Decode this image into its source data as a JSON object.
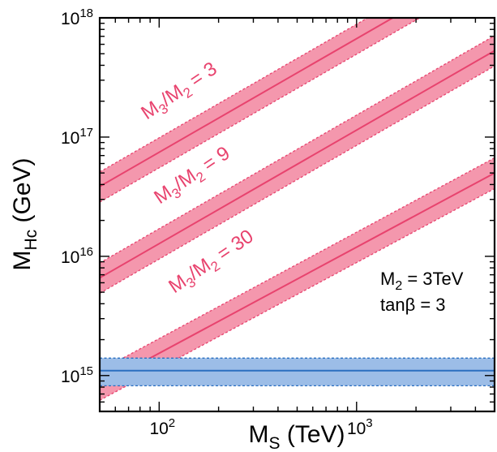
{
  "chart_data": {
    "type": "line",
    "xlabel": {
      "main": "M",
      "sub": "S",
      "unit": " (TeV)"
    },
    "ylabel": {
      "main": "M",
      "sub": "Hc",
      "unit": " (GeV)"
    },
    "xscale": "log",
    "yscale": "log",
    "xlim": [
      50,
      5000
    ],
    "ylim": [
      500000000000000.0,
      1e+18
    ],
    "grid": false,
    "x_ticks": [
      {
        "value": 100,
        "base": "10",
        "exp": "2"
      },
      {
        "value": 1000,
        "base": "10",
        "exp": "3"
      }
    ],
    "y_ticks": [
      {
        "value": 1000000000000000.0,
        "base": "10",
        "exp": "15"
      },
      {
        "value": 1e+16,
        "base": "10",
        "exp": "16"
      },
      {
        "value": 1e+17,
        "base": "10",
        "exp": "17"
      },
      {
        "value": 1e+18,
        "base": "10",
        "exp": "18"
      }
    ],
    "series": [
      {
        "label": {
          "a": "M",
          "a_sub": "3",
          "sep": "/M",
          "b_sub": "2",
          "rest": " = 3"
        },
        "x": [
          50,
          5000
        ],
        "y": [
          3.85e+16,
          3.1e+18
        ],
        "y_low": [
          2.85e+16,
          2.3e+18
        ],
        "y_high": [
          5.1e+16,
          4.1e+18
        ],
        "color": "#e8436e",
        "fill": "#f497ad"
      },
      {
        "label": {
          "a": "M",
          "a_sub": "3",
          "sep": "/M",
          "b_sub": "2",
          "rest": " = 9"
        },
        "x": [
          50,
          5000
        ],
        "y": [
          6600000000000000.0,
          5.3e+17
        ],
        "y_low": [
          4900000000000000.0,
          3.95e+17
        ],
        "y_high": [
          8800000000000000.0,
          7.1e+17
        ],
        "color": "#e8436e",
        "fill": "#f497ad"
      },
      {
        "label": {
          "a": "M",
          "a_sub": "3",
          "sep": "/M",
          "b_sub": "2",
          "rest": " = 30"
        },
        "x": [
          50,
          5000
        ],
        "y": [
          830000000000000.0,
          5e+16
        ],
        "y_low": [
          620000000000000.0,
          3.7e+16
        ],
        "y_high": [
          1100000000000000.0,
          6.7e+16
        ],
        "color": "#e8436e",
        "fill": "#f497ad"
      },
      {
        "x": [
          50,
          5000
        ],
        "y": [
          1100000000000000.0,
          1100000000000000.0
        ],
        "y_low": [
          820000000000000.0,
          820000000000000.0
        ],
        "y_high": [
          1400000000000000.0,
          1400000000000000.0
        ],
        "color": "#2a6fc0",
        "fill": "#9cbde7"
      }
    ],
    "annotations": [
      {
        "main": "M",
        "sub": "2",
        "rest": " = 3TeV"
      },
      {
        "text": "tanβ = 3"
      }
    ]
  }
}
